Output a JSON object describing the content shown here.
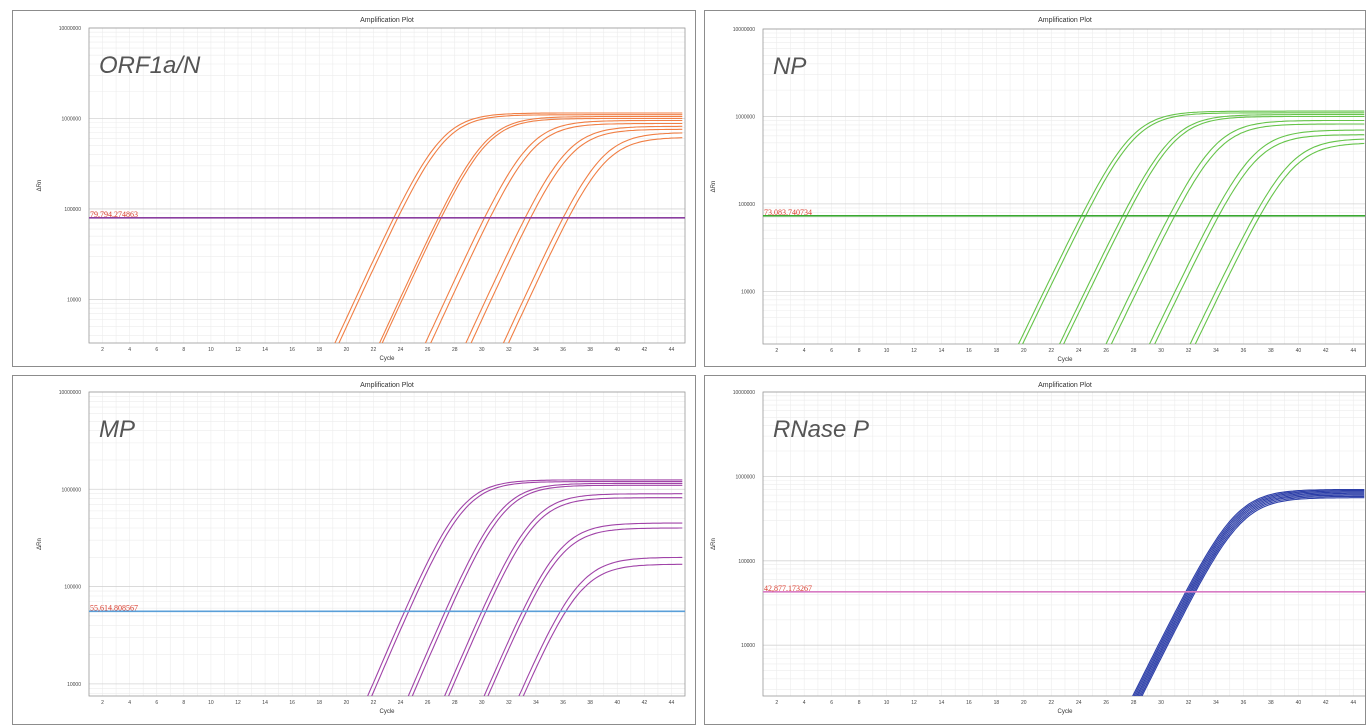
{
  "chart_data": [
    {
      "type": "line",
      "title": "Amplification Plot",
      "gene_label": "ORF1a/N",
      "xlabel": "Cycle",
      "ylabel": "ΔRn",
      "yscale": "log",
      "xlim": [
        1,
        45
      ],
      "ylim": [
        3300,
        10000000
      ],
      "x_ticks": [
        2,
        4,
        6,
        8,
        10,
        12,
        14,
        16,
        18,
        20,
        22,
        24,
        26,
        28,
        30,
        32,
        34,
        36,
        38,
        40,
        42,
        44
      ],
      "y_ticks": [
        {
          "value": 10000,
          "label": "10000"
        },
        {
          "value": 100000,
          "label": "100000"
        },
        {
          "value": 1000000,
          "label": "1000000"
        },
        {
          "value": 10000000,
          "label": "10000000"
        }
      ],
      "grid": true,
      "curve_color": "#f07f45",
      "threshold": {
        "value": 79794.27,
        "label": "79,794.274863",
        "color": "#8b3fa0"
      },
      "curves": [
        {
          "ct": 23.5,
          "plateau": 1150000
        },
        {
          "ct": 23.8,
          "plateau": 1100000
        },
        {
          "ct": 26.8,
          "plateau": 1050000
        },
        {
          "ct": 27.0,
          "plateau": 1000000
        },
        {
          "ct": 30.2,
          "plateau": 950000
        },
        {
          "ct": 30.6,
          "plateau": 880000
        },
        {
          "ct": 33.2,
          "plateau": 820000
        },
        {
          "ct": 33.6,
          "plateau": 760000
        },
        {
          "ct": 36.0,
          "plateau": 700000
        },
        {
          "ct": 36.4,
          "plateau": 620000
        }
      ]
    },
    {
      "type": "line",
      "title": "Amplification Plot",
      "gene_label": "NP",
      "xlabel": "Cycle",
      "ylabel": "ΔRn",
      "yscale": "log",
      "xlim": [
        1,
        45
      ],
      "ylim": [
        2500,
        10000000
      ],
      "x_ticks": [
        2,
        4,
        6,
        8,
        10,
        12,
        14,
        16,
        18,
        20,
        22,
        24,
        26,
        28,
        30,
        32,
        34,
        36,
        38,
        40,
        42,
        44
      ],
      "y_ticks": [
        {
          "value": 10000,
          "label": "10000"
        },
        {
          "value": 100000,
          "label": "100000"
        },
        {
          "value": 1000000,
          "label": "1000000"
        },
        {
          "value": 10000000,
          "label": "10000000"
        }
      ],
      "grid": true,
      "curve_color": "#66c44a",
      "threshold": {
        "value": 73083.74,
        "label": "73,083.740734",
        "color": "#3aa832"
      },
      "curves": [
        {
          "ct": 24.2,
          "plateau": 1150000
        },
        {
          "ct": 24.5,
          "plateau": 1100000
        },
        {
          "ct": 27.2,
          "plateau": 1050000
        },
        {
          "ct": 27.5,
          "plateau": 1000000
        },
        {
          "ct": 30.6,
          "plateau": 900000
        },
        {
          "ct": 31.0,
          "plateau": 820000
        },
        {
          "ct": 33.8,
          "plateau": 700000
        },
        {
          "ct": 34.2,
          "plateau": 620000
        },
        {
          "ct": 36.8,
          "plateau": 560000
        },
        {
          "ct": 37.2,
          "plateau": 500000
        }
      ]
    },
    {
      "type": "line",
      "title": "Amplification Plot",
      "gene_label": "MP",
      "xlabel": "Cycle",
      "ylabel": "ΔRn",
      "yscale": "log",
      "xlim": [
        1,
        45
      ],
      "ylim": [
        7500,
        10000000
      ],
      "x_ticks": [
        2,
        4,
        6,
        8,
        10,
        12,
        14,
        16,
        18,
        20,
        22,
        24,
        26,
        28,
        30,
        32,
        34,
        36,
        38,
        40,
        42,
        44
      ],
      "y_ticks": [
        {
          "value": 10000,
          "label": "10000"
        },
        {
          "value": 100000,
          "label": "100000"
        },
        {
          "value": 1000000,
          "label": "1000000"
        },
        {
          "value": 10000000,
          "label": "10000000"
        }
      ],
      "grid": true,
      "curve_color": "#a043a8",
      "threshold": {
        "value": 55614.81,
        "label": "55,614.808567",
        "color": "#5a9fd8"
      },
      "curves": [
        {
          "ct": 24.3,
          "plateau": 1250000
        },
        {
          "ct": 24.6,
          "plateau": 1200000
        },
        {
          "ct": 27.3,
          "plateau": 1150000
        },
        {
          "ct": 27.6,
          "plateau": 1100000
        },
        {
          "ct": 30.0,
          "plateau": 900000
        },
        {
          "ct": 30.3,
          "plateau": 820000
        },
        {
          "ct": 33.0,
          "plateau": 450000
        },
        {
          "ct": 33.3,
          "plateau": 400000
        },
        {
          "ct": 35.8,
          "plateau": 200000
        },
        {
          "ct": 36.2,
          "plateau": 170000
        }
      ]
    },
    {
      "type": "line",
      "title": "Amplification Plot",
      "gene_label": "RNase P",
      "xlabel": "Cycle",
      "ylabel": "ΔRn",
      "yscale": "log",
      "xlim": [
        1,
        45
      ],
      "ylim": [
        2500,
        10000000
      ],
      "x_ticks": [
        2,
        4,
        6,
        8,
        10,
        12,
        14,
        16,
        18,
        20,
        22,
        24,
        26,
        28,
        30,
        32,
        34,
        36,
        38,
        40,
        42,
        44
      ],
      "y_ticks": [
        {
          "value": 10000,
          "label": "10000"
        },
        {
          "value": 100000,
          "label": "100000"
        },
        {
          "value": 1000000,
          "label": "1000000"
        },
        {
          "value": 10000000,
          "label": "10000000"
        }
      ],
      "grid": true,
      "curve_color": "#2d3fa8",
      "threshold": {
        "value": 42877.17,
        "label": "42,877.173267",
        "color": "#d87bc4"
      },
      "curves": [
        {
          "ct": 31.8,
          "plateau": 700000
        },
        {
          "ct": 31.9,
          "plateau": 680000
        },
        {
          "ct": 32.0,
          "plateau": 660000
        },
        {
          "ct": 32.1,
          "plateau": 640000
        },
        {
          "ct": 32.2,
          "plateau": 620000
        },
        {
          "ct": 32.3,
          "plateau": 600000
        },
        {
          "ct": 32.4,
          "plateau": 580000
        },
        {
          "ct": 32.5,
          "plateau": 560000
        }
      ]
    }
  ]
}
